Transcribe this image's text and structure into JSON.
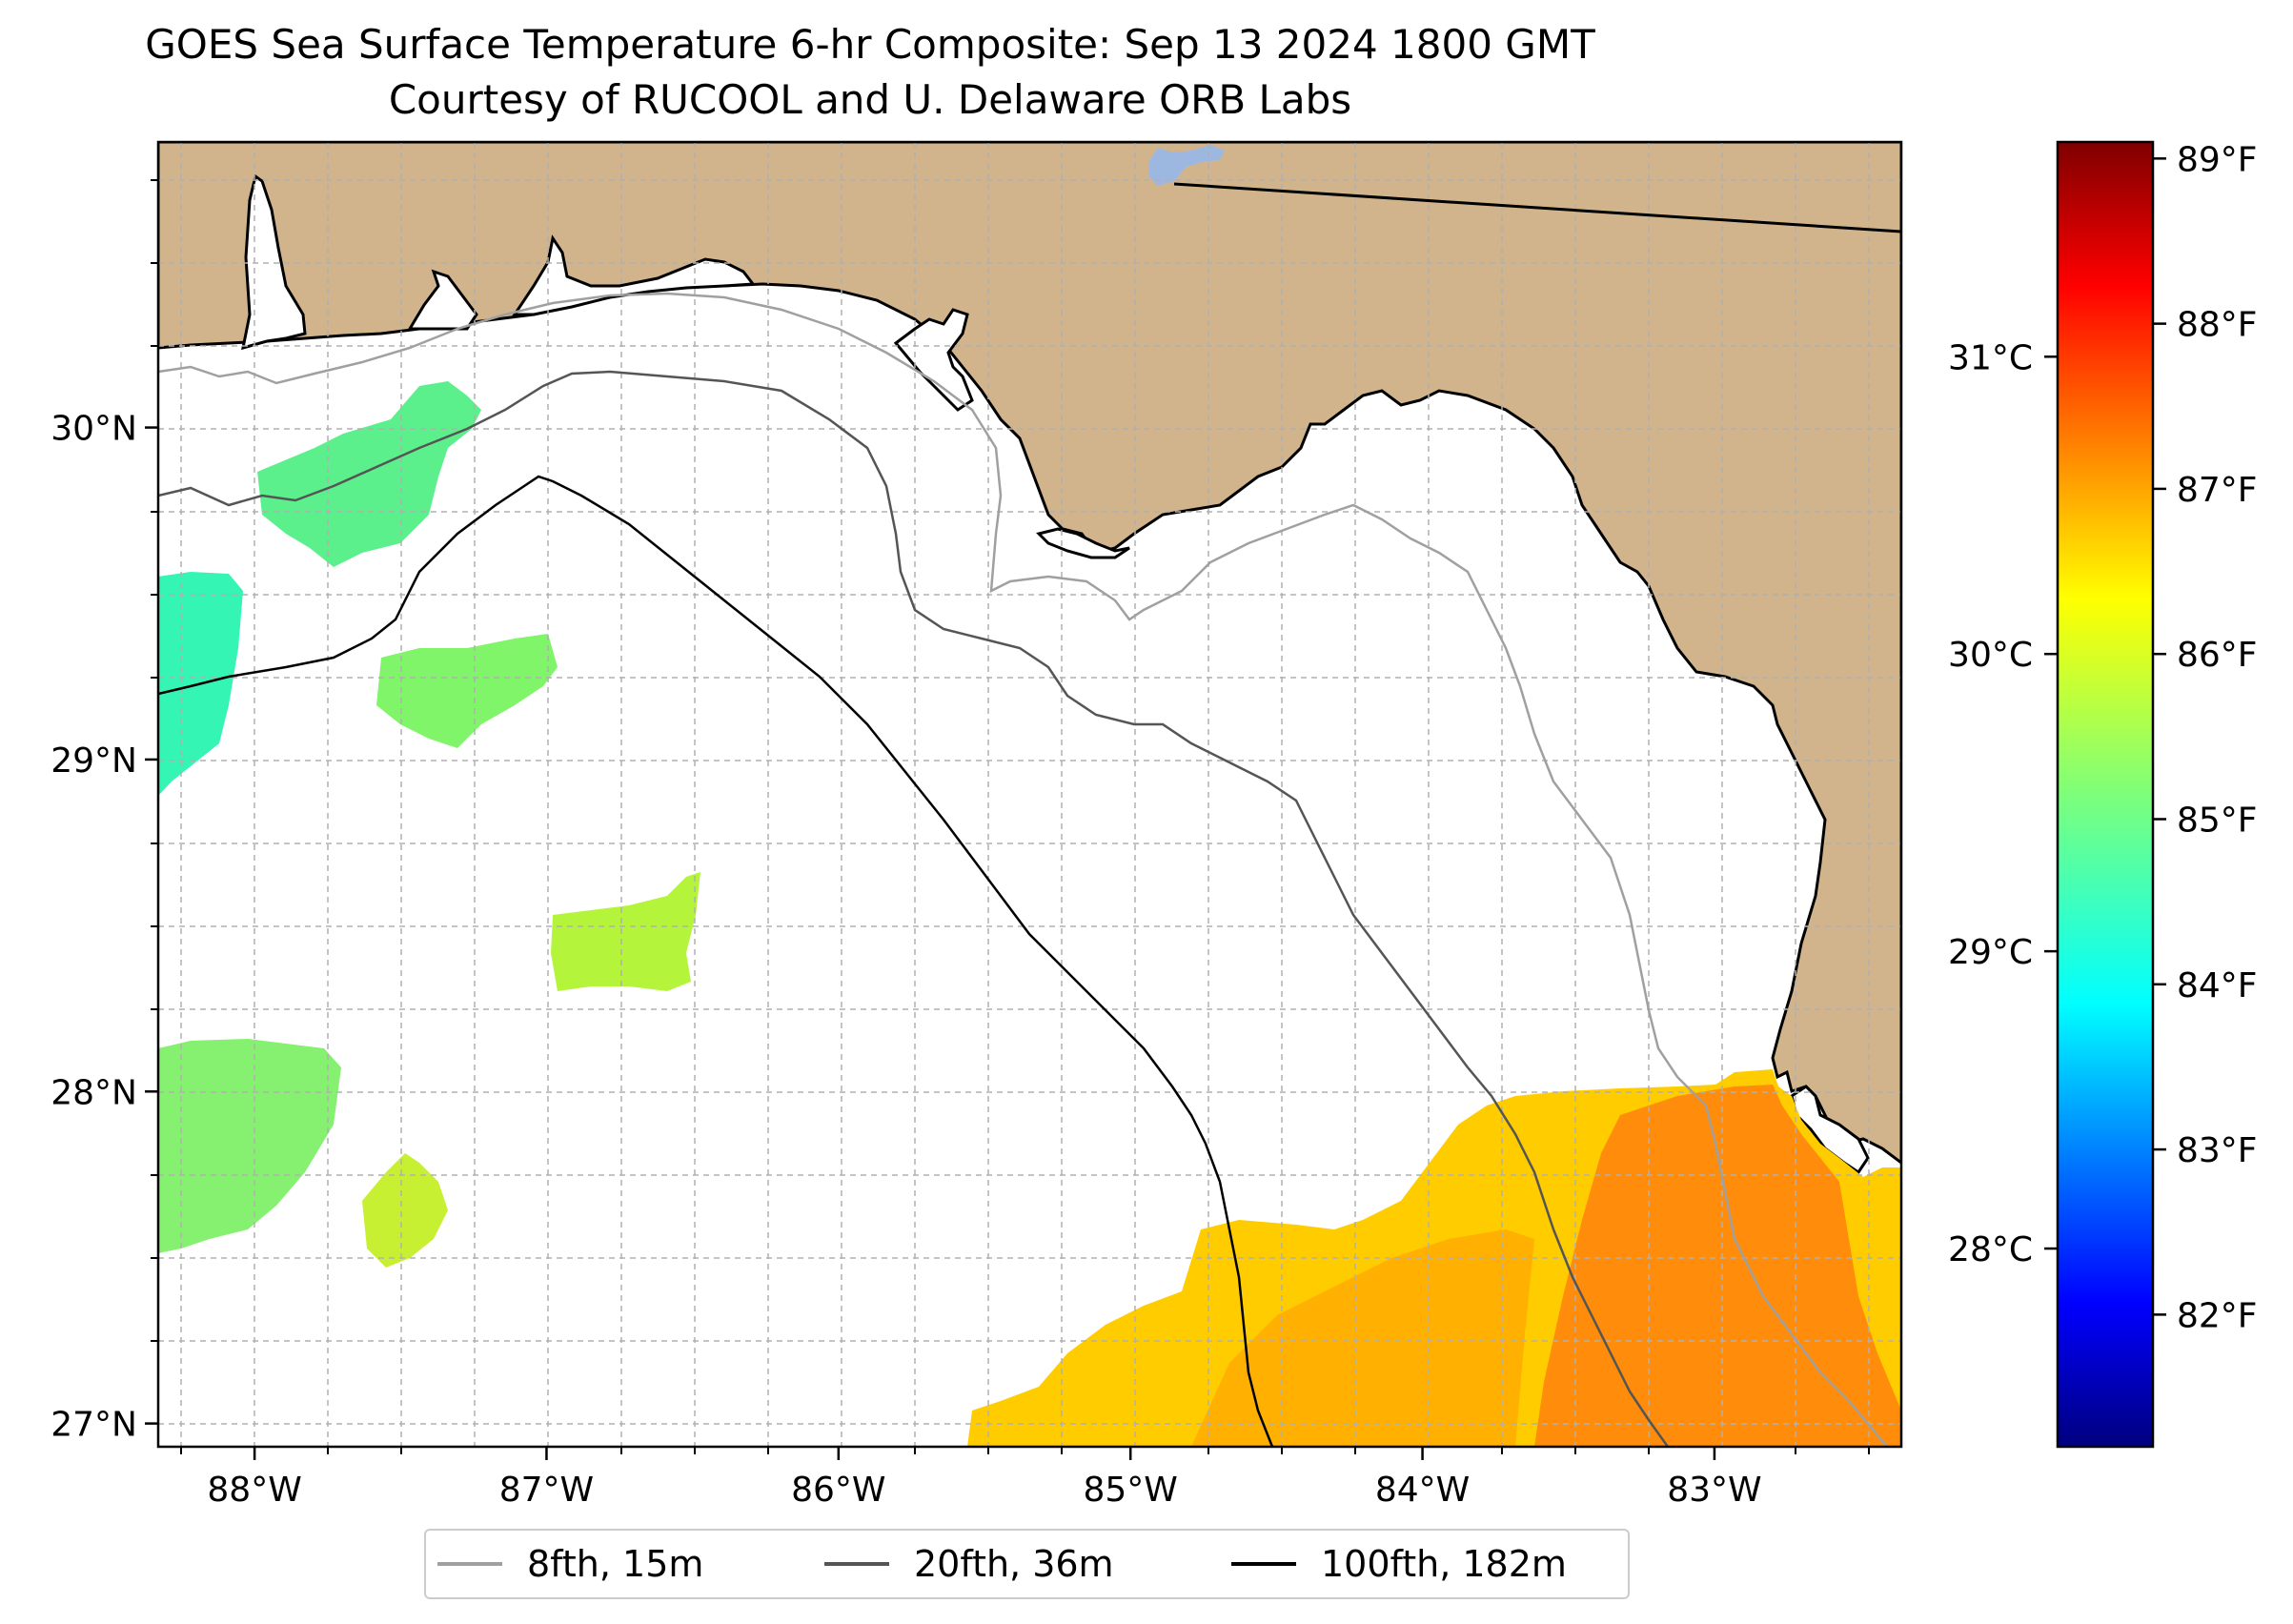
{
  "title": {
    "line1": "GOES Sea Surface Temperature 6-hr Composite: Sep 13 2024 1800 GMT",
    "line2": "Courtesy of RUCOOL and U. Delaware ORB Labs"
  },
  "map": {
    "extent_lon": [
      -88.33,
      -82.36
    ],
    "extent_lat": [
      26.93,
      30.86
    ],
    "lon_ticks": [
      {
        "value": -88,
        "label": "88°W"
      },
      {
        "value": -87,
        "label": "87°W"
      },
      {
        "value": -86,
        "label": "86°W"
      },
      {
        "value": -85,
        "label": "85°W"
      },
      {
        "value": -84,
        "label": "84°W"
      },
      {
        "value": -83,
        "label": "83°W"
      }
    ],
    "lat_ticks": [
      {
        "value": 27,
        "label": "27°N"
      },
      {
        "value": 28,
        "label": "28°N"
      },
      {
        "value": 29,
        "label": "29°N"
      },
      {
        "value": 30,
        "label": "30°N"
      }
    ],
    "gridlines": true,
    "colors": {
      "land": "#d2b48c",
      "lake": "#9db8e0",
      "grid": "#b0b0b0",
      "sst_orange": "#ff8c0a",
      "sst_yellow": "#ffd400",
      "sst_green": "#5cf08c",
      "sst_lime": "#b4f53c"
    }
  },
  "colorbar": {
    "celsius_ticks": [
      {
        "value": 28,
        "label": "28°C"
      },
      {
        "value": 29,
        "label": "29°C"
      },
      {
        "value": 30,
        "label": "30°C"
      },
      {
        "value": 31,
        "label": "31°C"
      }
    ],
    "fahrenheit_ticks": [
      {
        "value": 82,
        "label": "82°F"
      },
      {
        "value": 83,
        "label": "83°F"
      },
      {
        "value": 84,
        "label": "84°F"
      },
      {
        "value": 85,
        "label": "85°F"
      },
      {
        "value": 86,
        "label": "86°F"
      },
      {
        "value": 87,
        "label": "87°F"
      },
      {
        "value": 88,
        "label": "88°F"
      },
      {
        "value": 89,
        "label": "89°F"
      }
    ],
    "range_f": [
      81.2,
      89.1
    ],
    "colormap": "jet"
  },
  "legend": {
    "placement": "bottom-center",
    "entries": [
      {
        "label": "8fth, 15m",
        "color": "#a0a0a0"
      },
      {
        "label": "20fth, 36m",
        "color": "#555555"
      },
      {
        "label": "100fth, 182m",
        "color": "#000000"
      }
    ]
  }
}
